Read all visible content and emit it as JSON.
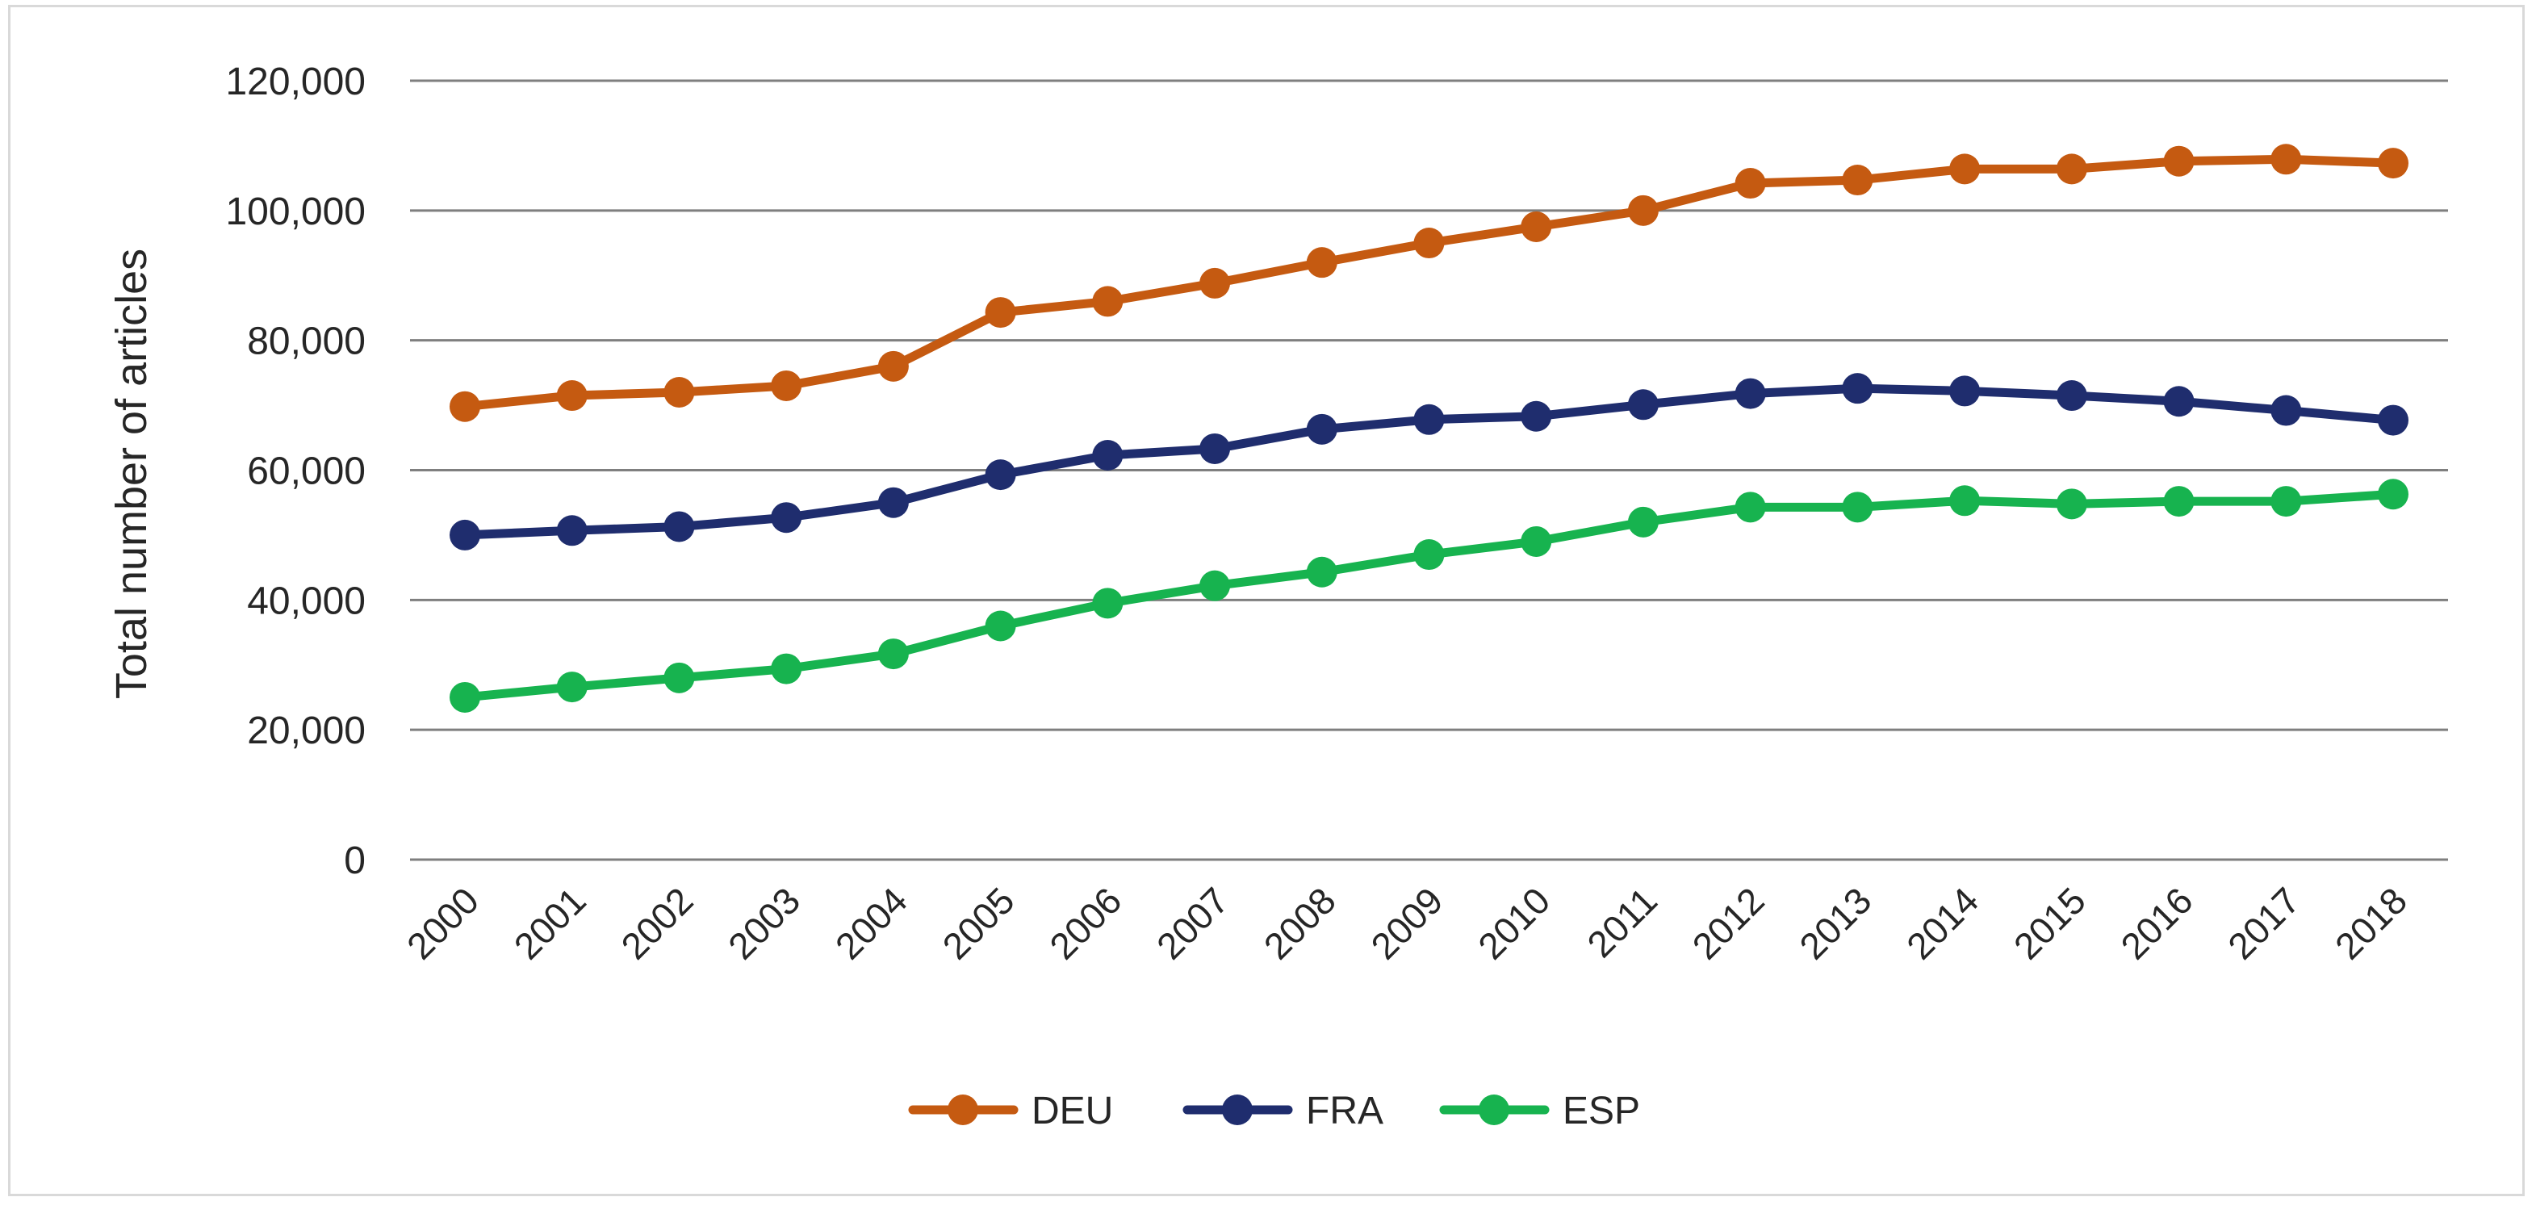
{
  "chart_data": {
    "type": "line",
    "title": "",
    "xlabel": "",
    "ylabel": "Total number of articles",
    "ylim": [
      0,
      120000
    ],
    "yticks": [
      0,
      20000,
      40000,
      60000,
      80000,
      100000,
      120000
    ],
    "ytick_labels": [
      "0",
      "20,000",
      "40,000",
      "60,000",
      "80,000",
      "100,000",
      "120,000"
    ],
    "grid": true,
    "legend_position": "bottom-center",
    "categories": [
      "2000",
      "2001",
      "2002",
      "2003",
      "2004",
      "2005",
      "2006",
      "2007",
      "2008",
      "2009",
      "2010",
      "2011",
      "2012",
      "2013",
      "2014",
      "2015",
      "2016",
      "2017",
      "2018"
    ],
    "series": [
      {
        "name": "DEU",
        "color": "#c55a11",
        "values": [
          69800,
          71500,
          72000,
          73000,
          76000,
          84300,
          86000,
          88800,
          92000,
          95000,
          97500,
          100000,
          104200,
          104700,
          106400,
          106400,
          107600,
          107900,
          107300
        ]
      },
      {
        "name": "FRA",
        "color": "#1f2d6e",
        "values": [
          50000,
          50700,
          51300,
          52700,
          55000,
          59300,
          62300,
          63300,
          66300,
          67800,
          68300,
          70100,
          71800,
          72600,
          72200,
          71500,
          70600,
          69200,
          67700
        ]
      },
      {
        "name": "ESP",
        "color": "#17b34f",
        "values": [
          25000,
          26600,
          28000,
          29400,
          31700,
          36000,
          39500,
          42200,
          44300,
          47000,
          49000,
          52000,
          54300,
          54300,
          55300,
          54800,
          55200,
          55200,
          56300
        ]
      }
    ]
  }
}
